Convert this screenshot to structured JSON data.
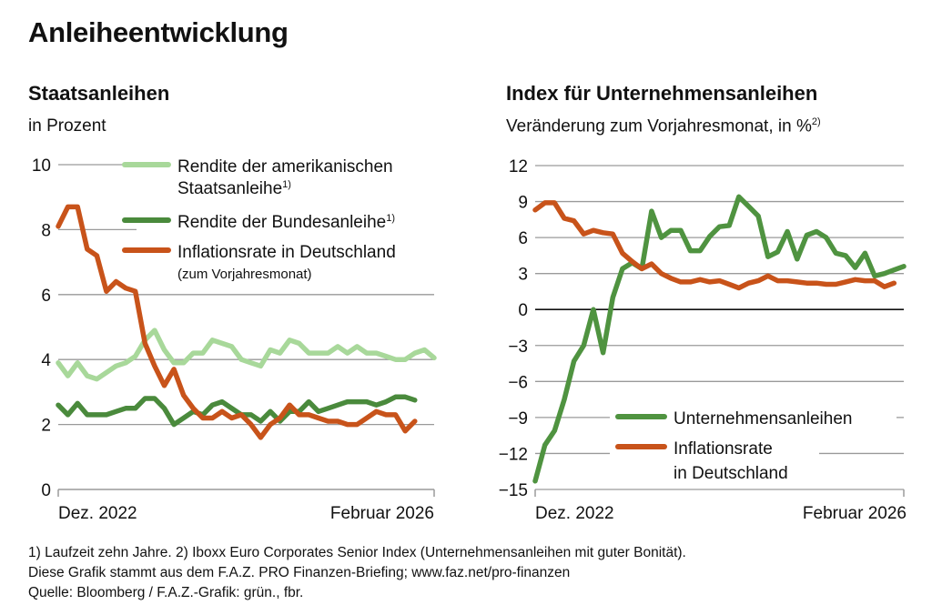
{
  "title": "Anleiheentwicklung",
  "footnotes": [
    "1) Laufzeit zehn Jahre. 2) Iboxx Euro Corporates Senior Index (Unternehmensanleihen mit guter Bonität).",
    "Diese Grafik stammt aus dem F.A.Z. PRO Finanzen-Briefing; www.faz.net/pro-finanzen",
    "Quelle: Bloomberg / F.A.Z.-Grafik: grün., fbr."
  ],
  "colors": {
    "us_yield": "#a8d89a",
    "bund_yield": "#4a8a3c",
    "inflation": "#c8531a",
    "corporate": "#4f9340",
    "grid": "#9a9a9a"
  },
  "chart_data": [
    {
      "type": "line",
      "title": "Staatsanleihen",
      "subtitle": "in Prozent",
      "xlabel": "",
      "ylabel": "",
      "x_start_label": "Dez. 2022",
      "x_end_label": "Februar 2026",
      "ylim": [
        0,
        10
      ],
      "yticks": [
        0,
        2,
        4,
        6,
        8,
        10
      ],
      "ytick_labels": [
        "0",
        "2",
        "4",
        "6",
        "8",
        "10"
      ],
      "grid": true,
      "legend_position": "top-right",
      "series": [
        {
          "name": "Rendite der amerikanischen Staatsanleihe",
          "legend_line1": "Rendite der amerikanischen",
          "legend_line2": "Staatsanleihe",
          "footnote": "1)",
          "color": "#a8d89a",
          "values": [
            3.9,
            3.5,
            3.9,
            3.5,
            3.4,
            3.6,
            3.8,
            3.9,
            4.1,
            4.6,
            4.9,
            4.3,
            3.9,
            3.9,
            4.2,
            4.2,
            4.6,
            4.5,
            4.4,
            4.0,
            3.9,
            3.8,
            4.3,
            4.2,
            4.6,
            4.5,
            4.2,
            4.2,
            4.2,
            4.4,
            4.2,
            4.4,
            4.2,
            4.2,
            4.1,
            4.0,
            4.0,
            4.2,
            4.3,
            4.05
          ]
        },
        {
          "name": "Rendite der Bundesanleihe",
          "legend_line1": "Rendite der Bundesanleihe",
          "footnote": "1)",
          "color": "#4a8a3c",
          "values": [
            2.6,
            2.3,
            2.65,
            2.3,
            2.3,
            2.3,
            2.4,
            2.5,
            2.5,
            2.8,
            2.8,
            2.5,
            2.0,
            2.2,
            2.4,
            2.3,
            2.6,
            2.7,
            2.5,
            2.3,
            2.3,
            2.1,
            2.4,
            2.1,
            2.4,
            2.4,
            2.7,
            2.4,
            2.5,
            2.6,
            2.7,
            2.7,
            2.7,
            2.6,
            2.7,
            2.85,
            2.85,
            2.75
          ]
        },
        {
          "name": "Inflationsrate in Deutschland",
          "legend_line1": "Inflationsrate in Deutschland",
          "legend_line2": "(zum Vorjahresmonat)",
          "color": "#c8531a",
          "values": [
            8.1,
            8.7,
            8.7,
            7.4,
            7.2,
            6.1,
            6.4,
            6.2,
            6.1,
            4.5,
            3.8,
            3.2,
            3.7,
            2.9,
            2.5,
            2.2,
            2.2,
            2.4,
            2.2,
            2.3,
            2.0,
            1.6,
            2.0,
            2.2,
            2.6,
            2.3,
            2.3,
            2.2,
            2.1,
            2.1,
            2.0,
            2.0,
            2.2,
            2.4,
            2.3,
            2.3,
            1.8,
            2.1
          ]
        }
      ]
    },
    {
      "type": "line",
      "title": "Index für Unternehmensanleihen",
      "subtitle": "Veränderung zum Vorjahresmonat, in %",
      "subtitle_footnote": "2)",
      "xlabel": "",
      "ylabel": "",
      "x_start_label": "Dez. 2022",
      "x_end_label": "Februar 2026",
      "ylim": [
        -15,
        12
      ],
      "yticks": [
        -15,
        -12,
        -9,
        -6,
        -3,
        0,
        3,
        6,
        9,
        12
      ],
      "ytick_labels": [
        "−15",
        "−12",
        "−9",
        "−6",
        "−3",
        "0",
        "3",
        "6",
        "9",
        "12"
      ],
      "grid": true,
      "legend_position": "bottom-right",
      "series": [
        {
          "name": "Unternehmensanleihen",
          "legend_line1": "Unternehmensanleihen",
          "color": "#4f9340",
          "values": [
            -14.3,
            -11.3,
            -10.1,
            -7.5,
            -4.3,
            -3.0,
            0.0,
            -3.6,
            1.0,
            3.4,
            3.9,
            3.4,
            8.2,
            6.0,
            6.6,
            6.6,
            4.9,
            4.9,
            6.1,
            6.9,
            7.0,
            9.4,
            8.6,
            7.8,
            4.4,
            4.8,
            6.5,
            4.2,
            6.2,
            6.5,
            6.0,
            4.7,
            4.5,
            3.5,
            4.7,
            2.8,
            3.0,
            3.3,
            3.6
          ]
        },
        {
          "name": "Inflationsrate in Deutschland",
          "legend_line1": "Inflationsrate",
          "legend_line2": "in Deutschland",
          "color": "#c8531a",
          "values": [
            8.3,
            8.9,
            8.9,
            7.6,
            7.4,
            6.3,
            6.6,
            6.4,
            6.3,
            4.7,
            4.0,
            3.4,
            3.8,
            3.0,
            2.6,
            2.3,
            2.3,
            2.5,
            2.3,
            2.4,
            2.1,
            1.8,
            2.2,
            2.4,
            2.8,
            2.4,
            2.4,
            2.3,
            2.2,
            2.2,
            2.1,
            2.1,
            2.3,
            2.5,
            2.4,
            2.4,
            1.9,
            2.2
          ]
        }
      ]
    }
  ]
}
